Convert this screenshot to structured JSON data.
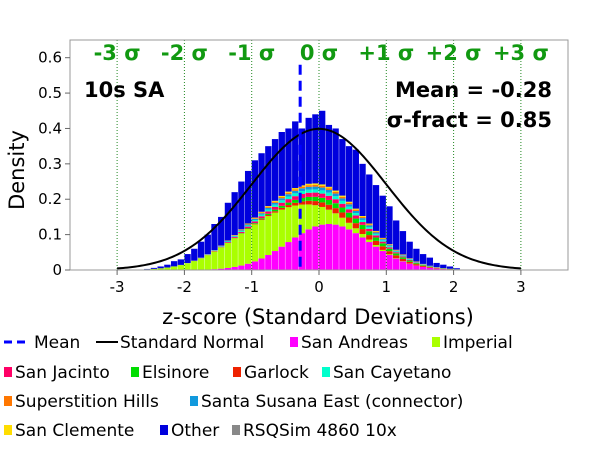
{
  "chart_data": {
    "type": "bar",
    "title": "",
    "xlabel": "z-score (Standard Deviations)",
    "ylabel": "Density",
    "xlim": [
      -3.7,
      3.7
    ],
    "ylim": [
      0,
      0.65
    ],
    "xticks": [
      "-3",
      "-2",
      "-1",
      "0",
      "1",
      "2",
      "3"
    ],
    "yticks": [
      "0",
      "0.1",
      "0.2",
      "0.3",
      "0.4",
      "0.5",
      "0.6"
    ],
    "grid": "vertical dotted lines at sigma positions",
    "sigma_labels": [
      {
        "x": -3,
        "label": "-3 σ"
      },
      {
        "x": -2,
        "label": "-2 σ"
      },
      {
        "x": -1,
        "label": "-1 σ"
      },
      {
        "x": 0,
        "label": "0 σ"
      },
      {
        "x": 1,
        "label": "+1 σ"
      },
      {
        "x": 2,
        "label": "+2 σ"
      },
      {
        "x": 3,
        "label": "+3 σ"
      }
    ],
    "annotations": {
      "period": "10s SA",
      "mean": "Mean = -0.28",
      "sigma_fract": "σ-fract = 0.85"
    },
    "mean_value": -0.28,
    "sigma_fract_value": 0.85,
    "bin_width": 0.1,
    "stacked_histogram": {
      "bin_centers": [
        -2.55,
        -2.45,
        -2.35,
        -2.25,
        -2.15,
        -2.05,
        -1.95,
        -1.85,
        -1.75,
        -1.65,
        -1.55,
        -1.45,
        -1.35,
        -1.25,
        -1.15,
        -1.05,
        -0.95,
        -0.85,
        -0.75,
        -0.65,
        -0.55,
        -0.45,
        -0.35,
        -0.25,
        -0.15,
        -0.05,
        0.05,
        0.15,
        0.25,
        0.35,
        0.45,
        0.55,
        0.65,
        0.75,
        0.85,
        0.95,
        1.05,
        1.15,
        1.25,
        1.35,
        1.45,
        1.55,
        1.65,
        1.75,
        1.85,
        1.95,
        2.05
      ],
      "total": [
        0.003,
        0.006,
        0.01,
        0.015,
        0.025,
        0.03,
        0.045,
        0.06,
        0.08,
        0.1,
        0.13,
        0.15,
        0.19,
        0.22,
        0.25,
        0.28,
        0.31,
        0.33,
        0.35,
        0.37,
        0.39,
        0.4,
        0.42,
        0.4,
        0.43,
        0.44,
        0.45,
        0.41,
        0.4,
        0.37,
        0.35,
        0.34,
        0.3,
        0.27,
        0.24,
        0.21,
        0.18,
        0.14,
        0.11,
        0.08,
        0.06,
        0.045,
        0.035,
        0.02,
        0.015,
        0.01,
        0.005
      ]
    },
    "series": [
      {
        "name": "Mean",
        "style": "dashed-line",
        "color": "#0000ff"
      },
      {
        "name": "Standard Normal",
        "style": "line",
        "color": "#000000"
      },
      {
        "name": "San Andreas",
        "style": "bar",
        "color": "#ff00ff"
      },
      {
        "name": "Imperial",
        "style": "bar",
        "color": "#aaff00"
      },
      {
        "name": "San Jacinto",
        "style": "bar",
        "color": "#ff0066"
      },
      {
        "name": "Elsinore",
        "style": "bar",
        "color": "#00dd00"
      },
      {
        "name": "Garlock",
        "style": "bar",
        "color": "#ee2200"
      },
      {
        "name": "San Cayetano",
        "style": "bar",
        "color": "#00ffcc"
      },
      {
        "name": "Superstition Hills",
        "style": "bar",
        "color": "#ff7700"
      },
      {
        "name": "Santa Susana East (connector)",
        "style": "bar",
        "color": "#1199dd"
      },
      {
        "name": "San Clemente",
        "style": "bar",
        "color": "#ffdd00"
      },
      {
        "name": "Other",
        "style": "bar",
        "color": "#0000dd"
      },
      {
        "name": "RSQSim 4860 10x",
        "style": "bar",
        "color": "#888888"
      }
    ]
  }
}
